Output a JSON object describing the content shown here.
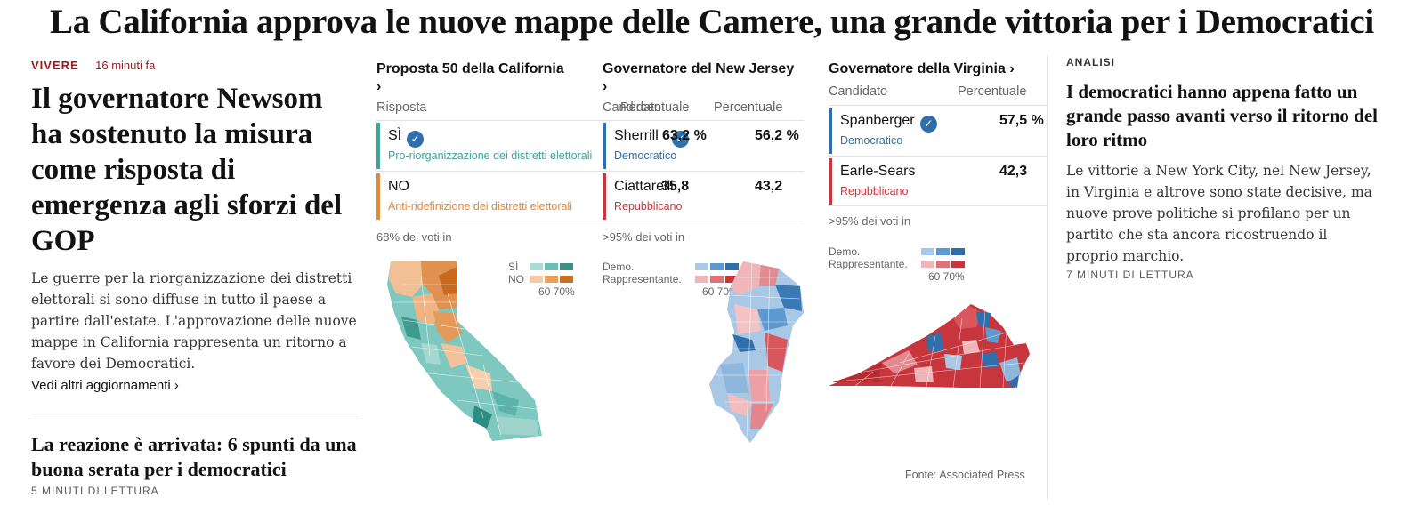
{
  "headline": "La California approva le nuove mappe delle Camere, una grande vittoria per i Democratici",
  "left": {
    "kicker": "VIVERE",
    "time": "16 minuti fa",
    "headline": "Il governatore Newsom ha sostenuto la misura come risposta di emergenza agli sforzi del GOP",
    "summary": "Le guerre per la riorganizzazione dei distretti elettorali si sono diffuse in tutto il paese a partire dall'estate. L'approvazione delle nuove mappe in California rappresenta un ritorno a favore dei Democratici.",
    "more_link": "Vedi altri aggiornamenti ›",
    "second_headline": "La reazione è arrivata: 6 spunti da una buona serata per i democratici",
    "second_read": "5 MINUTI DI LETTURA"
  },
  "races": {
    "ca": {
      "title": "Proposta 50 della California",
      "chev": "›",
      "col1": "Risposta",
      "rows": [
        {
          "name": "SÌ",
          "sub": "Pro-riorganizzazione dei distretti elettorali",
          "winner": true,
          "color": "#3fa39a"
        },
        {
          "name": "NO",
          "sub": "Anti-ridefinizione dei distretti elettorali",
          "winner": false,
          "color": "#e08a3c"
        }
      ],
      "report": "68% dei voti in",
      "legend": {
        "yes": "SÌ",
        "no": "NO",
        "scale": "60 70%"
      }
    },
    "nj": {
      "title": "Governatore del New Jersey",
      "chev": "›",
      "col1": "Candidato",
      "col1_overlap": "Percentuale",
      "col2": "Percentuale",
      "rows": [
        {
          "name": "Sherrill",
          "sub": "Democratico",
          "overlap": "63,2 %",
          "pct": "56,2 %",
          "winner": true,
          "color": "#2f6fab"
        },
        {
          "name": "Ciattarelli",
          "sub": "Repubblicano",
          "overlap": "35,8",
          "pct": "43,2",
          "winner": false,
          "color": "#c8363d"
        }
      ],
      "report": ">95% dei voti in",
      "legend": {
        "dem": "Demo.",
        "rep": "Rappresentante.",
        "scale": "60 70%"
      }
    },
    "va": {
      "title": "Governatore della Virginia",
      "chev": "›",
      "col1": "Candidato",
      "col2": "Percentuale",
      "rows": [
        {
          "name": "Spanberger",
          "sub": "Democratico",
          "pct": "57,5 %",
          "winner": true,
          "color": "#2f6fab"
        },
        {
          "name": "Earle-Sears",
          "sub": "Repubblicano",
          "pct": "42,3",
          "winner": false,
          "color": "#c8363d"
        }
      ],
      "report": ">95% dei voti in",
      "legend": {
        "dem": "Demo.",
        "rep": "Rappresentante.",
        "scale": "60 70%"
      }
    },
    "source": "Fonte: Associated Press"
  },
  "analysis": {
    "label": "ANALISI",
    "headline": "I democratici hanno appena fatto un grande passo avanti verso il ritorno del loro ritmo",
    "summary": "Le vittorie a New York City, nel New Jersey, in Virginia e altrove sono state decisive, ma nuove prove politiche si profilano per un partito che sta ancora ricostruendo il proprio marchio.",
    "read": "7 MINUTI DI LETTURA"
  },
  "colors": {
    "kicker": "#a4171a",
    "dem": "#2f6fab",
    "rep": "#c8363d",
    "yes": "#3fa39a",
    "no": "#e08a3c"
  },
  "icons": [
    "check-icon",
    "chevron-right-icon"
  ]
}
